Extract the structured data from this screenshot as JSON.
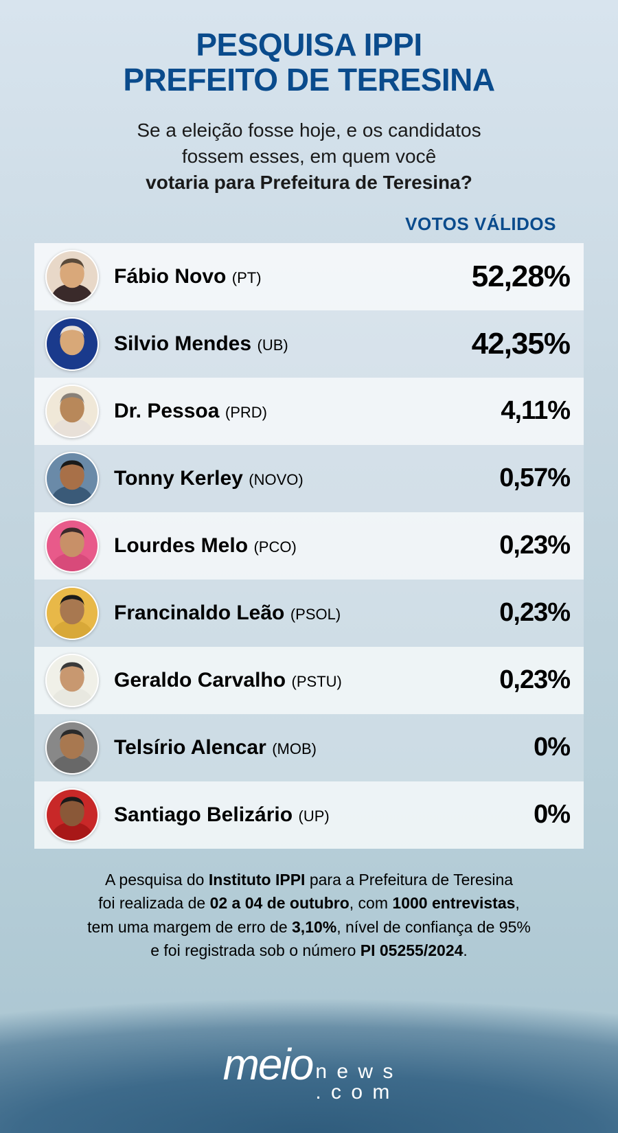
{
  "header": {
    "line1": "PESQUISA IPPI",
    "line2": "PREFEITO DE TERESINA"
  },
  "question": {
    "line1": "Se a eleição fosse hoje, e os candidatos",
    "line2": "fossem esses, em quem você",
    "line3_bold": "votaria para Prefeitura de Teresina?"
  },
  "column_header": "VOTOS VÁLIDOS",
  "style": {
    "title_color": "#0a4b8c",
    "header_color": "#0a4b8c",
    "row_bg_even": "rgba(255,255,255,0.75)",
    "row_bg_odd": "rgba(240,244,248,0.35)",
    "avatar_border": "#ffffff",
    "pct_size_lead": 44,
    "pct_size_normal": 38,
    "name_fontsize": 30,
    "party_fontsize": 22
  },
  "candidates": [
    {
      "name": "Fábio Novo",
      "party": "(PT)",
      "pct": "52,28%",
      "lead": true,
      "avatar": {
        "bg": "#e8d8c8",
        "skin": "#d9a87a",
        "hair": "#5a4a3a",
        "accent": "#3a2a2a"
      }
    },
    {
      "name": "Silvio Mendes",
      "party": "(UB)",
      "pct": "42,35%",
      "lead": true,
      "avatar": {
        "bg": "#1a3a8c",
        "skin": "#d8a878",
        "hair": "#e8e0d8",
        "accent": "#1a3a8c"
      }
    },
    {
      "name": "Dr. Pessoa",
      "party": "(PRD)",
      "pct": "4,11%",
      "lead": false,
      "avatar": {
        "bg": "#f0e8d8",
        "skin": "#b8885a",
        "hair": "#888078",
        "accent": "#e8e0d8"
      }
    },
    {
      "name": "Tonny Kerley",
      "party": "(NOVO)",
      "pct": "0,57%",
      "lead": false,
      "avatar": {
        "bg": "#6a8aa8",
        "skin": "#a87048",
        "hair": "#1a1a1a",
        "accent": "#3a5a78"
      }
    },
    {
      "name": "Lourdes Melo",
      "party": "(PCO)",
      "pct": "0,23%",
      "lead": false,
      "avatar": {
        "bg": "#e85a8a",
        "skin": "#c89068",
        "hair": "#3a2a2a",
        "accent": "#d84a7a"
      }
    },
    {
      "name": "Francinaldo Leão",
      "party": "(PSOL)",
      "pct": "0,23%",
      "lead": false,
      "avatar": {
        "bg": "#e8b848",
        "skin": "#a87850",
        "hair": "#1a1a1a",
        "accent": "#d8a838"
      }
    },
    {
      "name": "Geraldo Carvalho",
      "party": "(PSTU)",
      "pct": "0,23%",
      "lead": false,
      "avatar": {
        "bg": "#f0f0e8",
        "skin": "#c89870",
        "hair": "#3a3a3a",
        "accent": "#e8e8e0"
      }
    },
    {
      "name": "Telsírio Alencar",
      "party": "(MOB)",
      "pct": "0%",
      "lead": false,
      "avatar": {
        "bg": "#888888",
        "skin": "#a87850",
        "hair": "#2a2a2a",
        "accent": "#686868"
      }
    },
    {
      "name": "Santiago Belizário",
      "party": "(UP)",
      "pct": "0%",
      "lead": false,
      "avatar": {
        "bg": "#c82828",
        "skin": "#8a5838",
        "hair": "#1a1a1a",
        "accent": "#a81818"
      }
    }
  ],
  "footnote": {
    "t1": "A pesquisa do ",
    "b1": "Instituto IPPI",
    "t2": " para a Prefeitura de Teresina",
    "t3": "foi realizada de ",
    "b2": "02 a 04 de outubro",
    "t4": ", com ",
    "b3": "1000 entrevistas",
    "t5": ",",
    "t6": "tem uma margem de erro de ",
    "b4": "3,10%",
    "t7": ", nível de confiança de 95%",
    "t8": "e foi registrada sob o número ",
    "b5": "PI 05255/2024",
    "t9": "."
  },
  "logo": {
    "left": "meio",
    "news": "n e w s",
    "com": ". c o m"
  }
}
